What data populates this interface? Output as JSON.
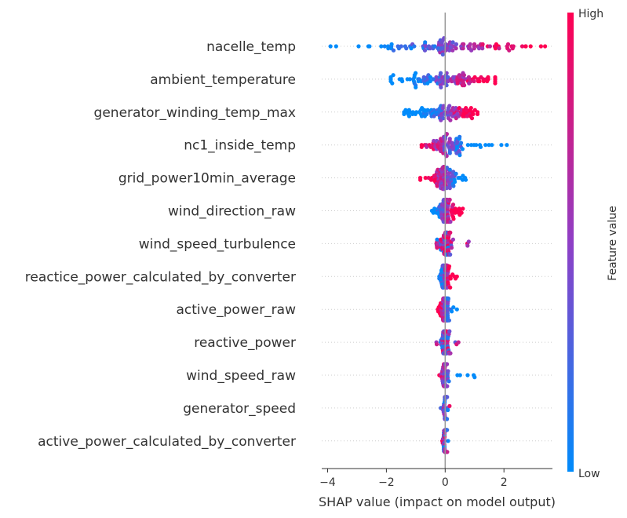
{
  "chart_data": {
    "type": "scatter",
    "subtype": "shap-beeswarm",
    "xlabel": "SHAP value (impact on model output)",
    "ylabel": "",
    "xlim": [
      -4.2,
      3.65
    ],
    "xticks": [
      -4,
      -2,
      0,
      2
    ],
    "grid": false,
    "zero_line": 0,
    "colorbar": {
      "label": "Feature value",
      "high_label": "High",
      "low_label": "Low",
      "low_color": "#008bfb",
      "high_color": "#ff0052",
      "mid_color": "#8f3fc6",
      "placement": "right"
    },
    "features": [
      {
        "name": "nacelle_temp",
        "min": -3.9,
        "max": 3.4,
        "center": 0.3,
        "spread": 1.2,
        "low_side": "left",
        "high_color_bias": "right",
        "n": 110
      },
      {
        "name": "ambient_temperature",
        "min": -1.85,
        "max": 1.7,
        "center": 0.1,
        "spread": 0.9,
        "low_side": "left",
        "high_color_bias": "right",
        "n": 110
      },
      {
        "name": "generator_winding_temp_max",
        "min": -1.4,
        "max": 1.1,
        "center": 0.1,
        "spread": 0.55,
        "low_side": "left",
        "high_color_bias": "right",
        "n": 100
      },
      {
        "name": "nc1_inside_temp",
        "min": -0.8,
        "max": 2.1,
        "center": 0.0,
        "spread": 0.35,
        "low_side": "right",
        "high_color_bias": "left",
        "n": 95
      },
      {
        "name": "grid_power10min_average",
        "min": -0.85,
        "max": 0.7,
        "center": 0.0,
        "spread": 0.25,
        "low_side": "right",
        "high_color_bias": "left",
        "n": 85
      },
      {
        "name": "wind_direction_raw",
        "min": -0.45,
        "max": 0.6,
        "center": 0.0,
        "spread": 0.18,
        "low_side": "left",
        "high_color_bias": "right",
        "n": 80
      },
      {
        "name": "wind_speed_turbulence",
        "min": -0.3,
        "max": 0.8,
        "center": 0.0,
        "spread": 0.14,
        "low_side": "mixed",
        "high_color_bias": "mixed",
        "n": 75
      },
      {
        "name": "reactice_power_calculated_by_converter",
        "min": -0.2,
        "max": 0.4,
        "center": 0.0,
        "spread": 0.1,
        "low_side": "mixed",
        "high_color_bias": "right",
        "n": 70
      },
      {
        "name": "active_power_raw",
        "min": -0.25,
        "max": 0.4,
        "center": 0.0,
        "spread": 0.08,
        "low_side": "right",
        "high_color_bias": "left",
        "n": 65
      },
      {
        "name": "reactive_power",
        "min": -0.3,
        "max": 0.45,
        "center": 0.0,
        "spread": 0.08,
        "low_side": "mixed",
        "high_color_bias": "mixed",
        "n": 65
      },
      {
        "name": "wind_speed_raw",
        "min": -0.2,
        "max": 1.0,
        "center": 0.0,
        "spread": 0.06,
        "low_side": "right",
        "high_color_bias": "left",
        "n": 60
      },
      {
        "name": "generator_speed",
        "min": -0.15,
        "max": 0.15,
        "center": 0.0,
        "spread": 0.04,
        "low_side": "mixed",
        "high_color_bias": "mixed",
        "n": 55
      },
      {
        "name": "active_power_calculated_by_converter",
        "min": -0.1,
        "max": 0.1,
        "center": 0.0,
        "spread": 0.03,
        "low_side": "mixed",
        "high_color_bias": "mixed",
        "n": 50
      }
    ]
  }
}
